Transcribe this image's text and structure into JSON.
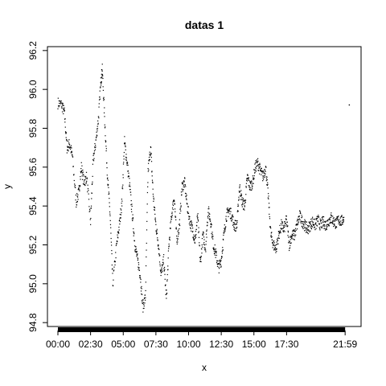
{
  "chart_data": {
    "type": "scatter",
    "title": "datas 1",
    "xlabel": "x",
    "ylabel": "y",
    "x_tick_labels": [
      "00:00",
      "02:30",
      "05:00",
      "07:30",
      "10:00",
      "12:30",
      "15:00",
      "17:30",
      "21:59"
    ],
    "x_tick_hours": [
      0,
      2.5,
      5,
      7.5,
      10,
      12.5,
      15,
      17.5,
      21.98
    ],
    "y_ticks": [
      "94.8",
      "95.0",
      "95.2",
      "95.4",
      "95.6",
      "95.8",
      "96.0",
      "96.2"
    ],
    "xlim_hours": [
      -0.8,
      23.2
    ],
    "ylim": [
      94.78,
      96.22
    ],
    "grid": false,
    "legend": "none",
    "point_color": "#000000",
    "x_axis_rug": "solid black band of ticks (one per observation) from 00:00 to 21:59",
    "series": [
      {
        "trace_hours": [
          0.0,
          0.3,
          0.5,
          0.7,
          0.9,
          1.1,
          1.4,
          1.6,
          1.8,
          2.0,
          2.2,
          2.5,
          2.7,
          2.9,
          3.1,
          3.3,
          3.4,
          3.6,
          3.8,
          4.0,
          4.2,
          4.5,
          4.7,
          4.9,
          5.1,
          5.3,
          5.5,
          5.7,
          5.9,
          6.1,
          6.3,
          6.5,
          6.7,
          6.9,
          7.1,
          7.3,
          7.5,
          7.7,
          7.9,
          8.1,
          8.3,
          8.5,
          8.7,
          8.9,
          9.1,
          9.3,
          9.5,
          9.7,
          9.9,
          10.1,
          10.3,
          10.5,
          10.7,
          10.9,
          11.1,
          11.3,
          11.5,
          11.7,
          11.9,
          12.1,
          12.3,
          12.5,
          12.7,
          12.9,
          13.1,
          13.3,
          13.5,
          13.7,
          13.9,
          14.1,
          14.3,
          14.5,
          14.7,
          14.9,
          15.1,
          15.3,
          15.5,
          15.7,
          15.9,
          16.1,
          16.3,
          16.5,
          16.7,
          16.9,
          17.1,
          17.3,
          17.5,
          17.7,
          17.9,
          18.1,
          18.3,
          18.5,
          18.7,
          18.9,
          19.1,
          19.3,
          19.5,
          19.7,
          19.9,
          20.1,
          20.3,
          20.5,
          20.7,
          20.9,
          21.1,
          21.3,
          21.5,
          21.7,
          21.9
        ],
        "trace_values": [
          95.93,
          95.92,
          95.88,
          95.7,
          95.72,
          95.66,
          95.42,
          95.47,
          95.6,
          95.52,
          95.55,
          95.32,
          95.63,
          95.73,
          95.85,
          96.05,
          96.1,
          95.82,
          95.55,
          95.35,
          95.0,
          95.2,
          95.3,
          95.42,
          95.73,
          95.62,
          95.5,
          95.35,
          95.2,
          95.12,
          95.05,
          94.88,
          94.93,
          95.58,
          95.7,
          95.45,
          95.3,
          95.2,
          95.05,
          95.12,
          94.92,
          95.2,
          95.35,
          95.45,
          95.22,
          95.3,
          95.5,
          95.52,
          95.4,
          95.32,
          95.28,
          95.22,
          95.35,
          95.1,
          95.25,
          95.18,
          95.38,
          95.32,
          95.2,
          95.15,
          95.08,
          95.12,
          95.25,
          95.35,
          95.38,
          95.35,
          95.3,
          95.3,
          95.5,
          95.42,
          95.4,
          95.55,
          95.5,
          95.52,
          95.6,
          95.62,
          95.58,
          95.55,
          95.6,
          95.45,
          95.25,
          95.2,
          95.18,
          95.25,
          95.3,
          95.28,
          95.33,
          95.2,
          95.25,
          95.25,
          95.3,
          95.35,
          95.32,
          95.3,
          95.28,
          95.3,
          95.32,
          95.3,
          95.33,
          95.3,
          95.32,
          95.3,
          95.32,
          95.34,
          95.32,
          95.31,
          95.33,
          95.32,
          95.34
        ]
      },
      {
        "name": "",
        "outlier_hours": [
          22.3
        ],
        "outlier_values": [
          95.92
        ]
      }
    ]
  }
}
